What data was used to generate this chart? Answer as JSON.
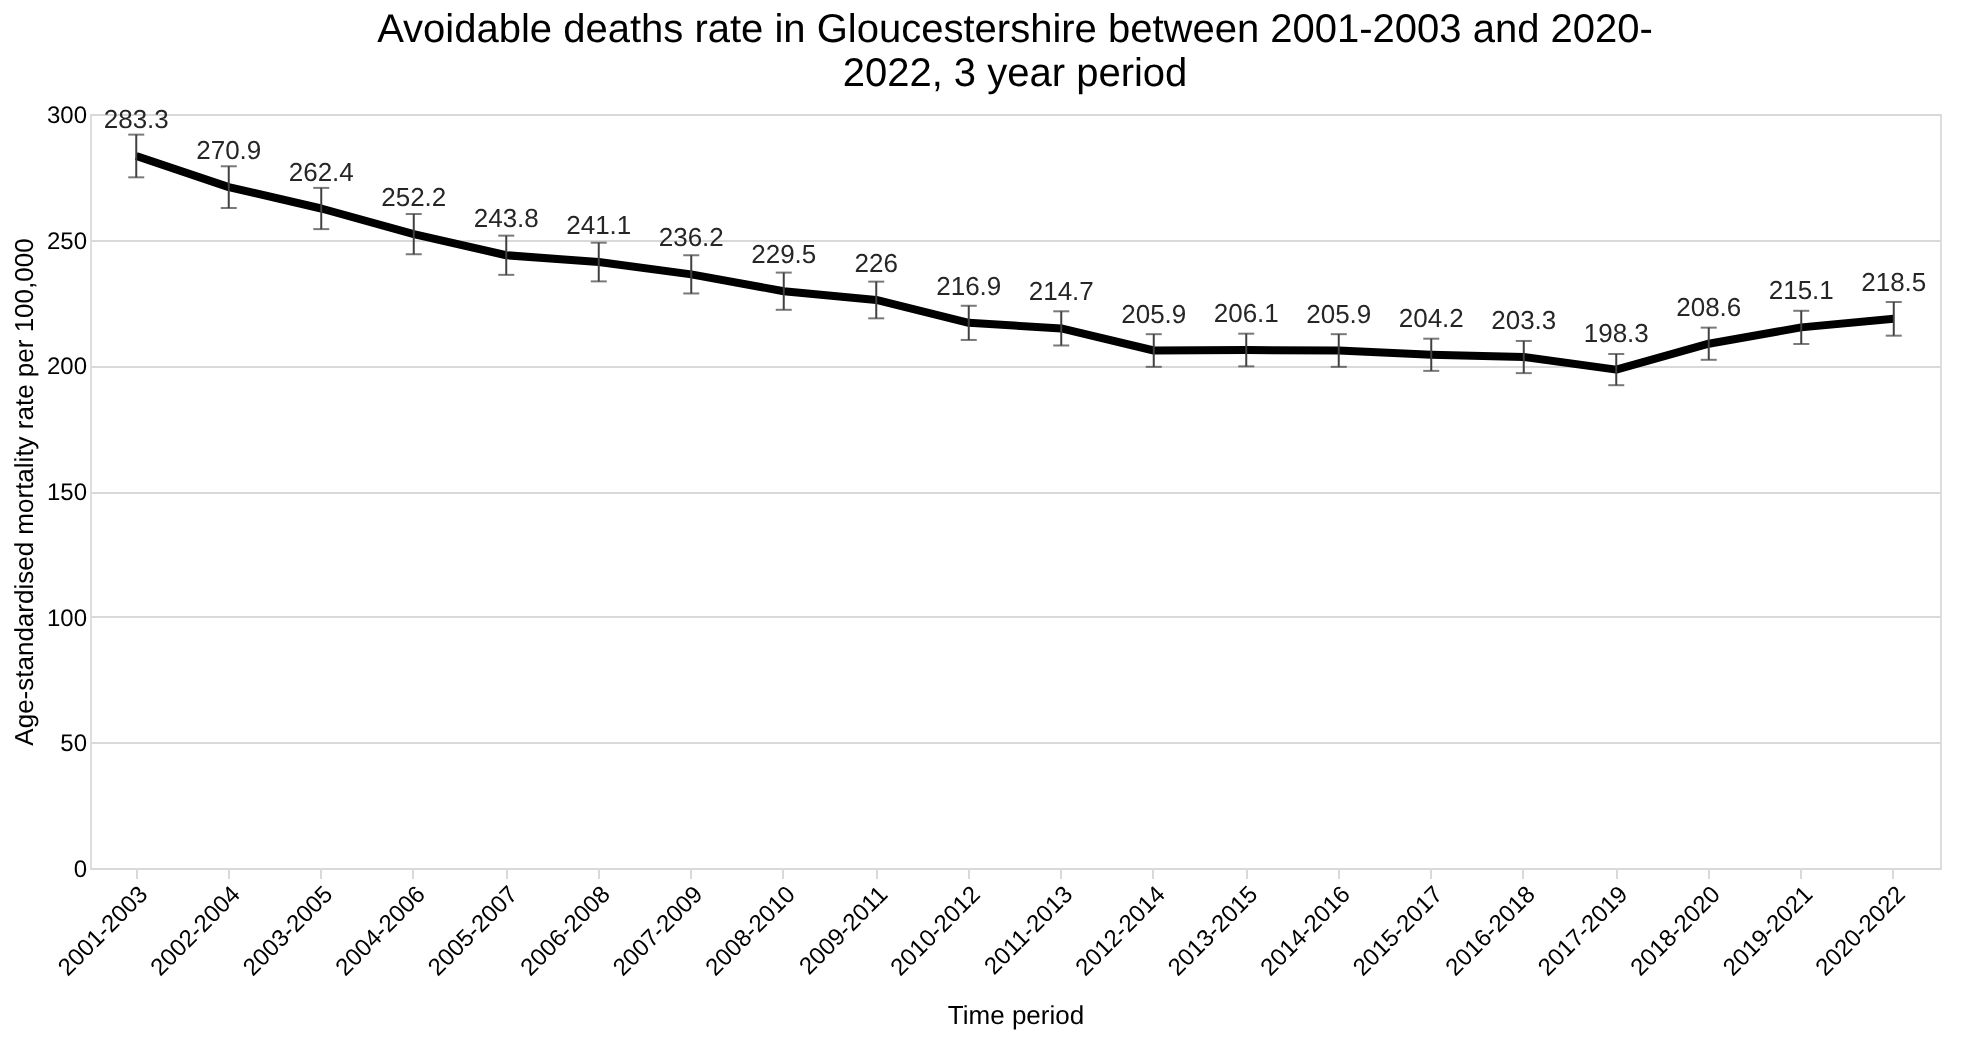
{
  "chart_data": {
    "type": "line",
    "title": [
      "Avoidable deaths rate in Gloucestershire between 2001-2003 and 2020-",
      "2022, 3 year period"
    ],
    "xlabel": "Time period",
    "ylabel": "Age-standardised mortality rate per 100,000",
    "categories": [
      "2001-2003",
      "2002-2004",
      "2003-2005",
      "2004-2006",
      "2005-2007",
      "2006-2008",
      "2007-2009",
      "2008-2010",
      "2009-2011",
      "2010-2012",
      "2011-2013",
      "2012-2014",
      "2013-2015",
      "2014-2016",
      "2015-2017",
      "2016-2018",
      "2017-2019",
      "2018-2020",
      "2019-2021",
      "2020-2022"
    ],
    "series": [
      {
        "color": "#000000",
        "values": [
          283.3,
          270.9,
          262.4,
          252.2,
          243.8,
          241.1,
          236.2,
          229.5,
          226,
          216.9,
          214.7,
          205.9,
          206.1,
          205.9,
          204.2,
          203.3,
          198.3,
          208.6,
          215.1,
          218.5
        ],
        "errors": [
          8.5,
          8.3,
          8.2,
          8,
          7.8,
          7.7,
          7.6,
          7.4,
          7.3,
          6.8,
          6.8,
          6.5,
          6.5,
          6.5,
          6.4,
          6.4,
          6.2,
          6.4,
          6.6,
          6.7
        ]
      }
    ],
    "ylim": [
      0,
      300
    ],
    "yticks": [
      0,
      50,
      100,
      150,
      200,
      250,
      300
    ],
    "grid": "y",
    "data_labels": true,
    "marker": "none",
    "line_style": "solid",
    "legend": false
  }
}
